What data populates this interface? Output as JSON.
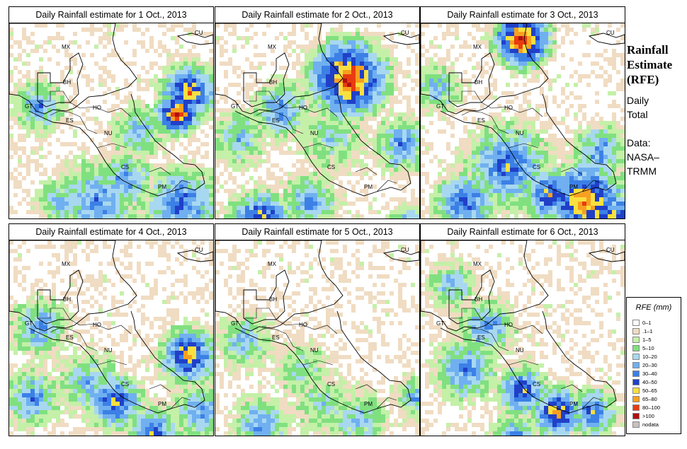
{
  "panels": [
    {
      "title": "Daily Rainfall estimate for  1 Oct., 2013"
    },
    {
      "title": "Daily Rainfall estimate for  2 Oct., 2013"
    },
    {
      "title": "Daily Rainfall estimate for  3 Oct., 2013"
    },
    {
      "title": "Daily Rainfall estimate for  4 Oct., 2013"
    },
    {
      "title": "Daily Rainfall estimate for  5 Oct., 2013"
    },
    {
      "title": "Daily Rainfall estimate for  6 Oct., 2013"
    }
  ],
  "map_labels": {
    "cu": "CU",
    "mx": "MX",
    "bh": "BH",
    "gt": "GT",
    "ho": "HO",
    "es": "ES",
    "nu": "NU",
    "cs": "CS",
    "pm": "PM"
  },
  "side": {
    "title_line1": "Rainfall",
    "title_line2": "Estimate",
    "title_line3": "(RFE)",
    "daily_line1": "Daily",
    "daily_line2": "Total",
    "data_line1": "Data:",
    "data_line2": "NASA–",
    "data_line3": "TRMM"
  },
  "legend": {
    "title": "RFE (mm)",
    "entries": [
      {
        "label": "0–1",
        "color": "#ffffff"
      },
      {
        "label": ".1–1",
        "color": "#f0dcc2"
      },
      {
        "label": "1–5",
        "color": "#c4f0a8"
      },
      {
        "label": "5–10",
        "color": "#80e080"
      },
      {
        "label": "10–20",
        "color": "#a8d8f0"
      },
      {
        "label": "20–30",
        "color": "#70b0f0"
      },
      {
        "label": "30–40",
        "color": "#3c80e6"
      },
      {
        "label": "40–50",
        "color": "#2040c8"
      },
      {
        "label": "50–65",
        "color": "#f8e040"
      },
      {
        "label": "65–80",
        "color": "#f8a020"
      },
      {
        "label": "80–100",
        "color": "#e83c10"
      },
      {
        "label": ">100",
        "color": "#b01010"
      },
      {
        "label": "nodata",
        "color": "#c8c0c0"
      }
    ]
  }
}
